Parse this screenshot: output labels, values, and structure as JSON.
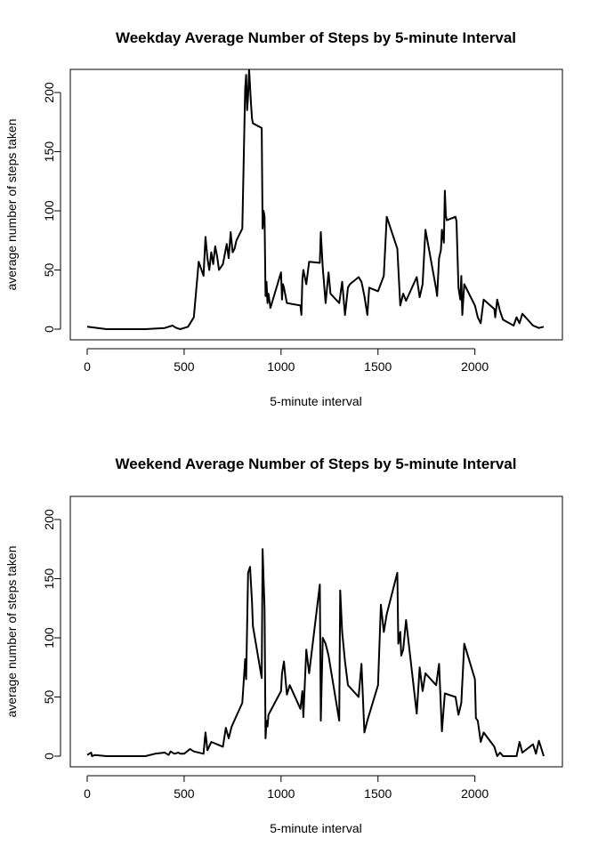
{
  "chart_data": [
    {
      "type": "line",
      "title": "Weekday Average Number of Steps by 5-minute Interval",
      "xlabel": "5-minute interval",
      "ylabel": "average number of steps taken",
      "xlim": [
        0,
        2355
      ],
      "ylim": [
        0,
        220
      ],
      "xticks": [
        0,
        500,
        1000,
        1500,
        2000
      ],
      "yticks": [
        0,
        50,
        100,
        150,
        200
      ],
      "grid": false,
      "series": [
        {
          "x": [
            0,
            100,
            200,
            300,
            400,
            420,
            440,
            460,
            480,
            500,
            520,
            550,
            575,
            600,
            610,
            620,
            630,
            640,
            650,
            660,
            670,
            680,
            700,
            720,
            730,
            740,
            750,
            760,
            770,
            800,
            815,
            820,
            825,
            830,
            835,
            840,
            845,
            850,
            855,
            900,
            905,
            910,
            915,
            920,
            925,
            930,
            935,
            945,
            1000,
            1005,
            1010,
            1015,
            1030,
            1100,
            1105,
            1110,
            1115,
            1130,
            1145,
            1200,
            1205,
            1215,
            1230,
            1245,
            1255,
            1300,
            1315,
            1330,
            1345,
            1355,
            1400,
            1415,
            1430,
            1445,
            1455,
            1500,
            1530,
            1545,
            1600,
            1615,
            1630,
            1645,
            1700,
            1715,
            1730,
            1745,
            1800,
            1805,
            1815,
            1825,
            1830,
            1840,
            1845,
            1850,
            1855,
            1900,
            1905,
            1915,
            1925,
            1930,
            1935,
            1945,
            2000,
            2015,
            2030,
            2045,
            2100,
            2105,
            2115,
            2130,
            2145,
            2200,
            2215,
            2230,
            2245,
            2300,
            2315,
            2330,
            2355
          ],
          "values": [
            2,
            0,
            0,
            0,
            1,
            2,
            3,
            1,
            0,
            1,
            2,
            10,
            57,
            45,
            78,
            60,
            50,
            65,
            55,
            70,
            62,
            50,
            55,
            72,
            60,
            82,
            65,
            68,
            75,
            85,
            203,
            215,
            185,
            197,
            220,
            205,
            190,
            178,
            174,
            170,
            85,
            100,
            95,
            28,
            40,
            22,
            30,
            18,
            48,
            25,
            38,
            35,
            22,
            20,
            12,
            42,
            50,
            38,
            57,
            56,
            82,
            52,
            22,
            48,
            30,
            22,
            40,
            12,
            35,
            38,
            44,
            40,
            28,
            12,
            35,
            32,
            45,
            95,
            68,
            20,
            30,
            24,
            44,
            27,
            38,
            84,
            34,
            28,
            60,
            67,
            84,
            73,
            117,
            96,
            92,
            95,
            91,
            35,
            25,
            45,
            12,
            38,
            20,
            10,
            5,
            25,
            17,
            10,
            25,
            15,
            8,
            3,
            10,
            5,
            13,
            3,
            2,
            1,
            2
          ]
        }
      ]
    },
    {
      "type": "line",
      "title": "Weekend Average Number of Steps by 5-minute Interval",
      "xlabel": "5-minute interval",
      "ylabel": "average number of steps taken",
      "xlim": [
        0,
        2355
      ],
      "ylim": [
        0,
        220
      ],
      "xticks": [
        0,
        500,
        1000,
        1500,
        2000
      ],
      "yticks": [
        0,
        50,
        100,
        150,
        200
      ],
      "grid": false,
      "series": [
        {
          "x": [
            0,
            20,
            25,
            40,
            100,
            200,
            300,
            350,
            400,
            420,
            430,
            450,
            470,
            480,
            500,
            530,
            550,
            600,
            610,
            620,
            640,
            700,
            715,
            730,
            745,
            800,
            815,
            820,
            830,
            840,
            850,
            855,
            900,
            905,
            915,
            920,
            925,
            930,
            935,
            1000,
            1005,
            1015,
            1030,
            1045,
            1100,
            1110,
            1115,
            1130,
            1145,
            1200,
            1205,
            1215,
            1230,
            1245,
            1300,
            1305,
            1315,
            1330,
            1345,
            1400,
            1415,
            1430,
            1445,
            1500,
            1515,
            1530,
            1545,
            1600,
            1605,
            1615,
            1620,
            1630,
            1645,
            1700,
            1715,
            1730,
            1745,
            1800,
            1815,
            1830,
            1845,
            1900,
            1915,
            1930,
            1945,
            2000,
            2005,
            2015,
            2030,
            2045,
            2100,
            2115,
            2130,
            2145,
            2200,
            2215,
            2230,
            2245,
            2300,
            2315,
            2330,
            2355
          ],
          "values": [
            1,
            3,
            0,
            1,
            0,
            0,
            0,
            2,
            3,
            1,
            4,
            2,
            3,
            2,
            2,
            6,
            4,
            2,
            20,
            5,
            12,
            8,
            24,
            15,
            25,
            45,
            82,
            65,
            155,
            160,
            130,
            110,
            66,
            175,
            125,
            15,
            30,
            25,
            35,
            55,
            70,
            80,
            52,
            60,
            40,
            55,
            33,
            90,
            70,
            145,
            30,
            100,
            95,
            85,
            30,
            140,
            105,
            80,
            60,
            50,
            78,
            20,
            30,
            60,
            128,
            105,
            120,
            155,
            95,
            105,
            85,
            90,
            115,
            36,
            75,
            55,
            70,
            60,
            78,
            21,
            53,
            50,
            35,
            45,
            95,
            65,
            32,
            30,
            12,
            20,
            8,
            0,
            3,
            0,
            0,
            0,
            12,
            3,
            10,
            2,
            13,
            0
          ]
        }
      ]
    }
  ]
}
